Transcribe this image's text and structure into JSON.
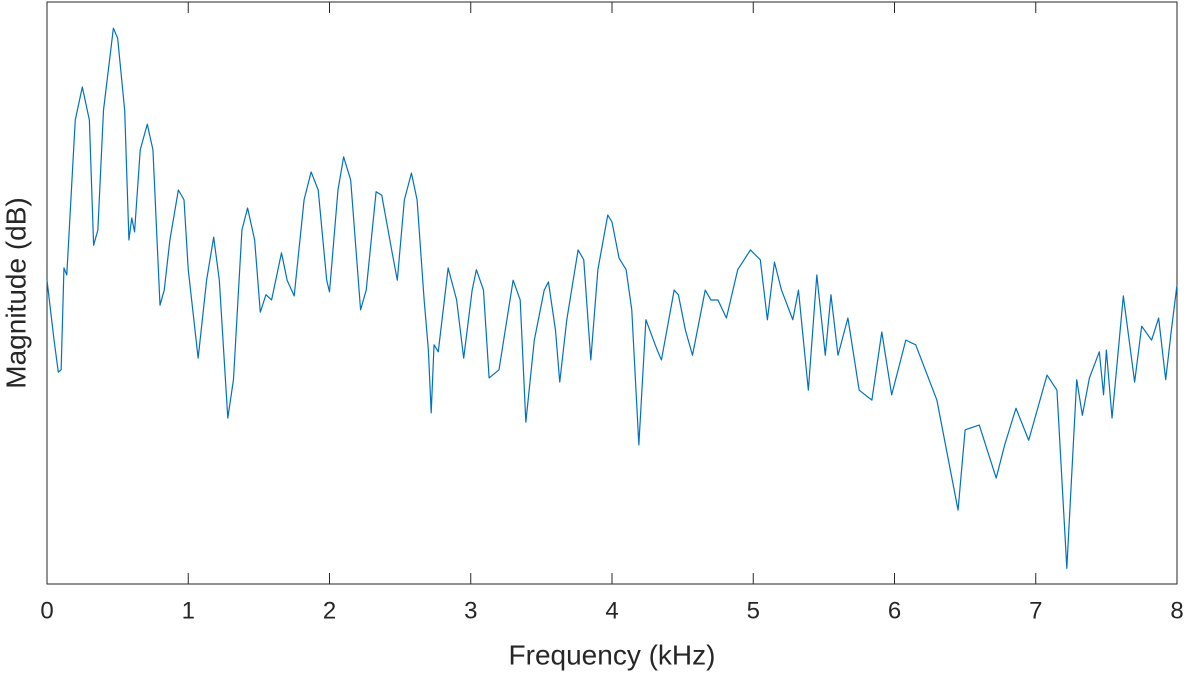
{
  "chart_data": {
    "type": "line",
    "x_label": "Frequency (kHz)",
    "y_label": "Magnitude (dB)",
    "xlim": [
      0,
      8
    ],
    "xticks": [
      0,
      1,
      2,
      3,
      4,
      5,
      6,
      7,
      8
    ],
    "ylim": [
      0,
      100
    ],
    "grid": false,
    "series": [
      {
        "color": "#0072bd",
        "x": [
          0,
          0.05,
          0.08,
          0.1,
          0.12,
          0.14,
          0.2,
          0.25,
          0.3,
          0.33,
          0.36,
          0.4,
          0.47,
          0.5,
          0.55,
          0.58,
          0.6,
          0.62,
          0.66,
          0.71,
          0.75,
          0.8,
          0.83,
          0.87,
          0.93,
          0.97,
          1.0,
          1.07,
          1.13,
          1.18,
          1.22,
          1.28,
          1.32,
          1.38,
          1.42,
          1.47,
          1.51,
          1.55,
          1.59,
          1.66,
          1.7,
          1.75,
          1.82,
          1.87,
          1.92,
          1.98,
          2.0,
          2.06,
          2.1,
          2.15,
          2.22,
          2.26,
          2.33,
          2.37,
          2.44,
          2.48,
          2.53,
          2.58,
          2.62,
          2.67,
          2.7,
          2.72,
          2.74,
          2.77,
          2.84,
          2.9,
          2.95,
          3.01,
          3.04,
          3.09,
          3.13,
          3.2,
          3.3,
          3.35,
          3.39,
          3.45,
          3.52,
          3.55,
          3.6,
          3.63,
          3.68,
          3.76,
          3.8,
          3.85,
          3.9,
          3.97,
          4.0,
          4.05,
          4.1,
          4.14,
          4.19,
          4.24,
          4.28,
          4.32,
          4.35,
          4.44,
          4.47,
          4.52,
          4.57,
          4.66,
          4.7,
          4.75,
          4.81,
          4.89,
          4.98,
          5.05,
          5.1,
          5.15,
          5.2,
          5.28,
          5.32,
          5.39,
          5.45,
          5.51,
          5.55,
          5.6,
          5.67,
          5.75,
          5.84,
          5.91,
          5.98,
          6.08,
          6.15,
          6.3,
          6.45,
          6.5,
          6.6,
          6.72,
          6.78,
          6.86,
          6.95,
          7.08,
          7.15,
          7.22,
          7.29,
          7.33,
          7.38,
          7.45,
          7.48,
          7.5,
          7.54,
          7.62,
          7.7,
          7.75,
          7.82,
          7.87,
          7.92,
          7.96,
          8.0
        ],
        "values": [
          52.2,
          41.9,
          36.4,
          36.8,
          54.3,
          53.1,
          79.7,
          85.4,
          79.7,
          58.2,
          60.8,
          81.4,
          95.5,
          93.8,
          81.4,
          59.1,
          62.9,
          60.5,
          74.6,
          79.0,
          74.6,
          47.9,
          50.5,
          59.1,
          67.7,
          66.0,
          54.0,
          38.8,
          52.2,
          59.6,
          52.2,
          28.5,
          35.1,
          60.8,
          64.6,
          59.1,
          46.7,
          49.7,
          48.8,
          56.9,
          52.2,
          49.5,
          66.0,
          70.8,
          67.7,
          52.2,
          50.2,
          67.7,
          73.4,
          69.4,
          47.1,
          50.5,
          67.4,
          66.8,
          57.4,
          52.2,
          66.0,
          70.6,
          66.0,
          48.8,
          40.2,
          29.4,
          41.1,
          39.9,
          54.3,
          48.8,
          38.8,
          50.5,
          54.0,
          50.5,
          35.4,
          36.8,
          52.2,
          48.8,
          27.8,
          41.9,
          50.5,
          51.9,
          43.6,
          34.7,
          45.4,
          57.4,
          55.7,
          38.5,
          54.0,
          63.4,
          62.2,
          56.0,
          54.0,
          47.1,
          23.9,
          45.4,
          42.8,
          40.2,
          38.5,
          50.5,
          49.7,
          43.6,
          39.3,
          50.5,
          48.8,
          48.8,
          45.7,
          54.0,
          57.4,
          55.7,
          45.4,
          55.3,
          50.5,
          45.4,
          50.5,
          33.3,
          53.1,
          39.3,
          49.7,
          39.3,
          45.7,
          33.3,
          31.6,
          43.3,
          32.5,
          41.9,
          41.1,
          31.6,
          12.7,
          26.5,
          27.3,
          18.2,
          23.9,
          30.2,
          24.7,
          35.9,
          33.3,
          2.7,
          35.1,
          29.0,
          35.4,
          39.9,
          32.5,
          40.2,
          28.5,
          49.5,
          34.7,
          44.3,
          41.9,
          45.7,
          35.1,
          43.6,
          51.4
        ]
      }
    ]
  }
}
